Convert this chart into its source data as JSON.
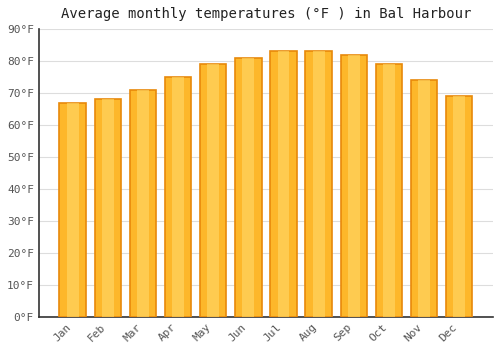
{
  "title": "Average monthly temperatures (°F ) in Bal Harbour",
  "months": [
    "Jan",
    "Feb",
    "Mar",
    "Apr",
    "May",
    "Jun",
    "Jul",
    "Aug",
    "Sep",
    "Oct",
    "Nov",
    "Dec"
  ],
  "values": [
    67,
    68,
    71,
    75,
    79,
    81,
    83,
    83,
    82,
    79,
    74,
    69
  ],
  "bar_color_main": "#FDB72A",
  "bar_color_edge": "#E8890A",
  "background_color": "#ffffff",
  "ylim": [
    0,
    90
  ],
  "ytick_step": 10,
  "title_fontsize": 10,
  "tick_fontsize": 8,
  "grid_color": "#dddddd",
  "spine_color": "#333333",
  "tick_color": "#555555"
}
